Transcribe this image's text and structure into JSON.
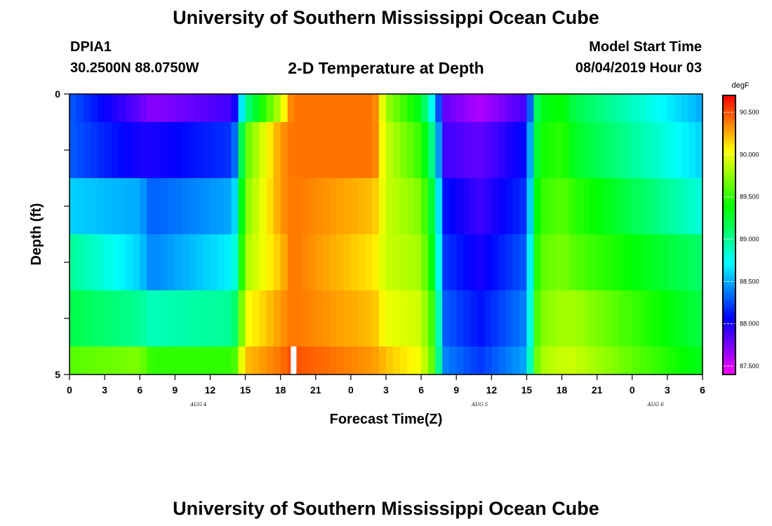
{
  "header": {
    "title": "University of Southern Mississippi Ocean Cube",
    "station_id": "DPIA1",
    "coordinates": "30.2500N 88.0750W",
    "subtitle": "2-D Temperature at Depth",
    "model_label": "Model Start Time",
    "model_time": "08/04/2019 Hour 03"
  },
  "footer": {
    "title": "University of Southern Mississippi Ocean Cube"
  },
  "chart_data": {
    "type": "heatmap",
    "title": "2-D Temperature at Depth",
    "xlabel": "Forecast Time(Z)",
    "ylabel": "Depth (ft)",
    "units": "degF",
    "x_tick_labels": [
      "0",
      "3",
      "6",
      "9",
      "12",
      "15",
      "18",
      "21",
      "0",
      "3",
      "6",
      "9",
      "12",
      "15",
      "18",
      "21",
      "0",
      "3",
      "6"
    ],
    "y_tick_labels": [
      "0",
      "5"
    ],
    "ylim": [
      0,
      5
    ],
    "day_labels": [
      {
        "label": "AUG 4",
        "hour": 11
      },
      {
        "label": "AUG 5",
        "hour": 35
      },
      {
        "label": "AUG 6",
        "hour": 50
      }
    ],
    "colorbar": {
      "min": 87.4,
      "max": 90.7,
      "tick_labels": [
        "90.500",
        "90.000",
        "89.500",
        "89.000",
        "88.500",
        "88.000",
        "87.500"
      ],
      "tick_values": [
        90.5,
        90.0,
        89.5,
        89.0,
        88.5,
        88.0,
        87.5
      ]
    },
    "hours": [
      0,
      6,
      7,
      14,
      15,
      18,
      19,
      26,
      27,
      30,
      31,
      32,
      35,
      39,
      40,
      42,
      43,
      54
    ],
    "depth_layers": [
      {
        "depth_ft": 0.5,
        "temps": [
          88.3,
          87.8,
          87.7,
          87.9,
          89.0,
          89.9,
          90.4,
          90.4,
          89.8,
          89.3,
          88.7,
          87.8,
          87.6,
          87.9,
          89.3,
          89.4,
          89.2,
          88.5
        ]
      },
      {
        "depth_ft": 1.5,
        "temps": [
          88.3,
          88.0,
          88.0,
          88.2,
          89.6,
          90.3,
          90.4,
          90.4,
          89.9,
          89.5,
          89.0,
          87.9,
          87.8,
          88.1,
          89.4,
          89.5,
          89.3,
          88.6
        ]
      },
      {
        "depth_ft": 2.5,
        "temps": [
          88.6,
          88.5,
          88.3,
          88.5,
          89.7,
          90.3,
          90.4,
          90.2,
          89.9,
          89.7,
          89.2,
          88.1,
          87.9,
          88.2,
          89.5,
          89.6,
          89.5,
          88.8
        ]
      },
      {
        "depth_ft": 3.5,
        "temps": [
          89.0,
          88.6,
          88.4,
          88.7,
          89.8,
          90.2,
          90.4,
          90.1,
          89.9,
          89.8,
          89.3,
          88.2,
          88.0,
          88.3,
          89.6,
          89.7,
          89.6,
          89.1
        ]
      },
      {
        "depth_ft": 4.5,
        "temps": [
          89.2,
          89.0,
          88.9,
          89.0,
          90.0,
          90.3,
          90.4,
          90.2,
          90.0,
          89.9,
          89.5,
          88.3,
          88.1,
          88.4,
          89.7,
          89.8,
          89.8,
          89.2
        ]
      },
      {
        "depth_ft": 5.0,
        "temps": [
          89.6,
          89.7,
          89.5,
          89.5,
          90.2,
          90.4,
          90.5,
          90.3,
          90.2,
          90.0,
          89.6,
          88.4,
          88.2,
          88.5,
          89.8,
          89.9,
          89.9,
          89.3
        ]
      }
    ],
    "missing_data": {
      "hour": 19,
      "depth_ft": 5.0
    }
  }
}
